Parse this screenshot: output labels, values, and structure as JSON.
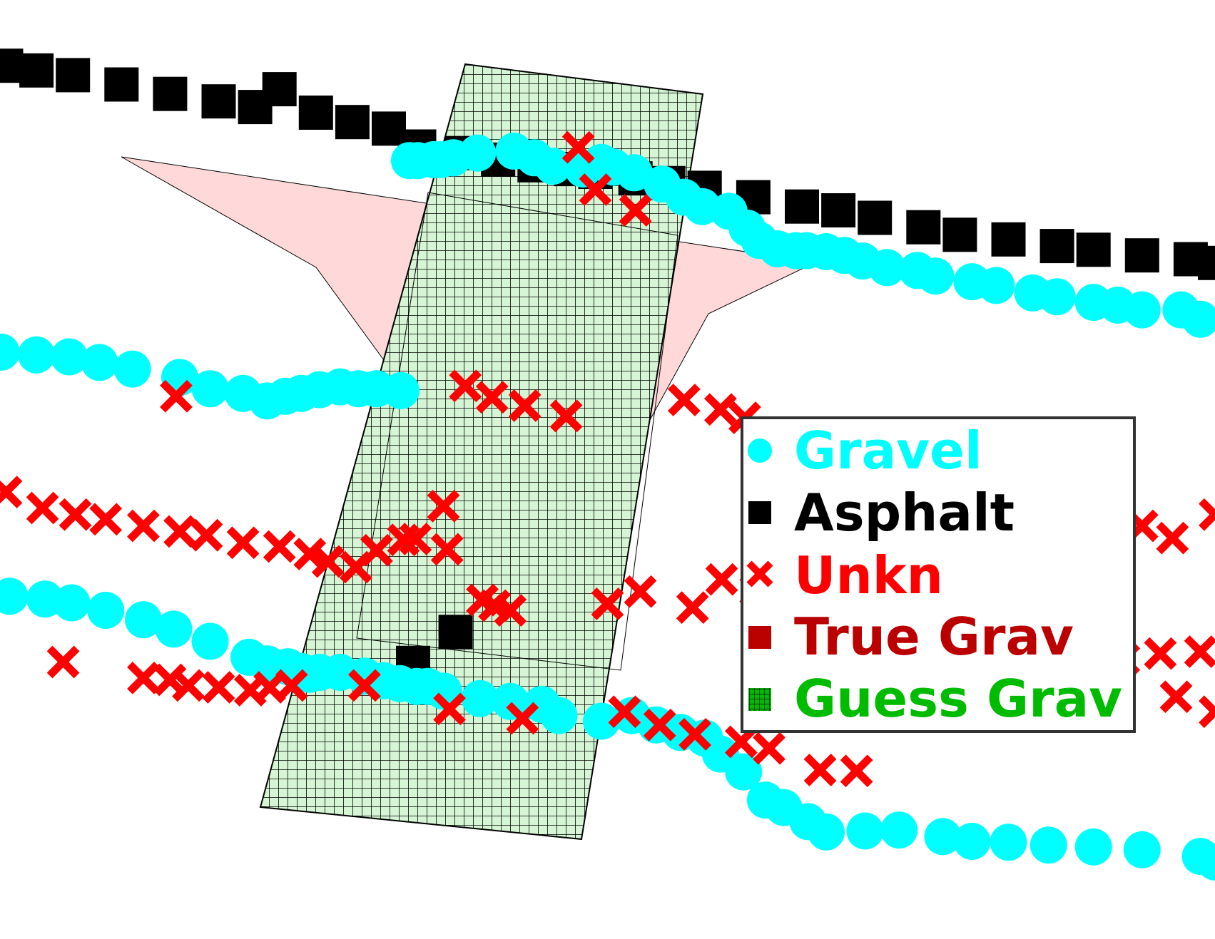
{
  "chart_data": {
    "type": "scatter",
    "title": "",
    "xlabel": "",
    "ylabel": "",
    "grid": false,
    "legend_position": "right",
    "xlim": [
      0,
      1000
    ],
    "ylim": [
      0,
      1000
    ],
    "series": [
      {
        "name": "Gravel",
        "marker": "circle",
        "color": "#00ffff",
        "points": [
          [
            1,
            625
          ],
          [
            30,
            622
          ],
          [
            57,
            620
          ],
          [
            82,
            614
          ],
          [
            109,
            607
          ],
          [
            148,
            598
          ],
          [
            173,
            586
          ],
          [
            200,
            581
          ],
          [
            220,
            573
          ],
          [
            235,
            578
          ],
          [
            248,
            581
          ],
          [
            263,
            585
          ],
          [
            280,
            588
          ],
          [
            295,
            586
          ],
          [
            310,
            586
          ],
          [
            330,
            584
          ],
          [
            337,
            829
          ],
          [
            344,
            829
          ],
          [
            357,
            830
          ],
          [
            363,
            830
          ],
          [
            373,
            832
          ],
          [
            393,
            837
          ],
          [
            423,
            839
          ],
          [
            440,
            832
          ],
          [
            455,
            823
          ],
          [
            480,
            820
          ],
          [
            495,
            827
          ],
          [
            505,
            822
          ],
          [
            522,
            816
          ],
          [
            545,
            804
          ],
          [
            563,
            790
          ],
          [
            578,
            780
          ],
          [
            600,
            775
          ],
          [
            615,
            757
          ],
          [
            625,
            744
          ],
          [
            640,
            735
          ],
          [
            655,
            733
          ],
          [
            664,
            733
          ],
          [
            680,
            732
          ],
          [
            695,
            728
          ],
          [
            710,
            722
          ],
          [
            730,
            715
          ],
          [
            755,
            712
          ],
          [
            770,
            706
          ],
          [
            800,
            700
          ],
          [
            820,
            696
          ],
          [
            850,
            688
          ],
          [
            870,
            684
          ],
          [
            900,
            678
          ],
          [
            920,
            675
          ],
          [
            940,
            670
          ],
          [
            972,
            670
          ],
          [
            988,
            660
          ],
          [
            8,
            365
          ],
          [
            37,
            362
          ],
          [
            59,
            358
          ],
          [
            87,
            350
          ],
          [
            118,
            340
          ],
          [
            143,
            330
          ],
          [
            173,
            317
          ],
          [
            205,
            300
          ],
          [
            220,
            293
          ],
          [
            237,
            290
          ],
          [
            248,
            285
          ],
          [
            255,
            282
          ],
          [
            263,
            284
          ],
          [
            280,
            284
          ],
          [
            300,
            280
          ],
          [
            316,
            275
          ],
          [
            329,
            272
          ],
          [
            343,
            269
          ],
          [
            352,
            269
          ],
          [
            365,
            264
          ],
          [
            395,
            256
          ],
          [
            420,
            253
          ],
          [
            446,
            250
          ],
          [
            460,
            238
          ],
          [
            495,
            232
          ],
          [
            520,
            238
          ],
          [
            540,
            228
          ],
          [
            560,
            220
          ],
          [
            580,
            214
          ],
          [
            593,
            197
          ],
          [
            612,
            178
          ],
          [
            630,
            148
          ],
          [
            645,
            140
          ],
          [
            665,
            125
          ],
          [
            680,
            114
          ],
          [
            712,
            115
          ],
          [
            740,
            116
          ],
          [
            776,
            109
          ],
          [
            800,
            104
          ],
          [
            830,
            103
          ],
          [
            863,
            100
          ],
          [
            900,
            98
          ],
          [
            940,
            95
          ],
          [
            988,
            88
          ],
          [
            1000,
            82
          ]
        ]
      },
      {
        "name": "Asphalt",
        "marker": "square",
        "color": "#000000",
        "points": [
          [
            5,
            930
          ],
          [
            30,
            925
          ],
          [
            60,
            920
          ],
          [
            100,
            910
          ],
          [
            140,
            900
          ],
          [
            180,
            892
          ],
          [
            210,
            886
          ],
          [
            230,
            905
          ],
          [
            260,
            880
          ],
          [
            290,
            870
          ],
          [
            320,
            863
          ],
          [
            345,
            844
          ],
          [
            380,
            837
          ],
          [
            410,
            830
          ],
          [
            440,
            824
          ],
          [
            470,
            820
          ],
          [
            490,
            817
          ],
          [
            523,
            810
          ],
          [
            550,
            805
          ],
          [
            580,
            800
          ],
          [
            620,
            790
          ],
          [
            660,
            780
          ],
          [
            690,
            776
          ],
          [
            720,
            768
          ],
          [
            760,
            758
          ],
          [
            790,
            750
          ],
          [
            830,
            745
          ],
          [
            870,
            738
          ],
          [
            900,
            734
          ],
          [
            940,
            728
          ],
          [
            980,
            724
          ],
          [
            1000,
            720
          ],
          [
            375,
            327
          ],
          [
            340,
            294
          ]
        ]
      },
      {
        "name": "Unkn",
        "marker": "x",
        "color": "#ff0000",
        "points": [
          [
            145,
            578
          ],
          [
            383,
            589
          ],
          [
            405,
            577
          ],
          [
            432,
            568
          ],
          [
            466,
            557
          ],
          [
            476,
            843
          ],
          [
            490,
            798
          ],
          [
            523,
            776
          ],
          [
            563,
            574
          ],
          [
            593,
            564
          ],
          [
            613,
            555
          ],
          [
            625,
            537
          ],
          [
            657,
            527
          ],
          [
            692,
            512
          ],
          [
            722,
            498
          ],
          [
            762,
            480
          ],
          [
            800,
            474
          ],
          [
            835,
            468
          ],
          [
            872,
            460
          ],
          [
            900,
            454
          ],
          [
            940,
            440
          ],
          [
            965,
            427
          ],
          [
            1000,
            452
          ],
          [
            5,
            476
          ],
          [
            35,
            459
          ],
          [
            62,
            452
          ],
          [
            87,
            447
          ],
          [
            118,
            440
          ],
          [
            148,
            434
          ],
          [
            170,
            430
          ],
          [
            200,
            422
          ],
          [
            230,
            418
          ],
          [
            255,
            410
          ],
          [
            270,
            402
          ],
          [
            293,
            396
          ],
          [
            310,
            414
          ],
          [
            332,
            425
          ],
          [
            342,
            426
          ],
          [
            365,
            461
          ],
          [
            368,
            415
          ],
          [
            397,
            361
          ],
          [
            407,
            355
          ],
          [
            420,
            350
          ],
          [
            500,
            357
          ],
          [
            527,
            370
          ],
          [
            570,
            353
          ],
          [
            594,
            383
          ],
          [
            622,
            371
          ],
          [
            660,
            330
          ],
          [
            695,
            325
          ],
          [
            732,
            314
          ],
          [
            765,
            310
          ],
          [
            800,
            306
          ],
          [
            830,
            301
          ],
          [
            860,
            300
          ],
          [
            890,
            300
          ],
          [
            925,
            298
          ],
          [
            955,
            304
          ],
          [
            988,
            306
          ],
          [
            52,
            295
          ],
          [
            118,
            278
          ],
          [
            140,
            276
          ],
          [
            155,
            270
          ],
          [
            180,
            268
          ],
          [
            206,
            265
          ],
          [
            222,
            268
          ],
          [
            240,
            270
          ],
          [
            300,
            270
          ],
          [
            370,
            245
          ],
          [
            430,
            235
          ],
          [
            514,
            242
          ],
          [
            543,
            228
          ],
          [
            572,
            218
          ],
          [
            610,
            210
          ],
          [
            633,
            203
          ],
          [
            675,
            180
          ],
          [
            705,
            179
          ],
          [
            968,
            258
          ],
          [
            1000,
            242
          ]
        ]
      }
    ],
    "regions": [
      {
        "name": "True Grav",
        "color": "#ffcccc",
        "description": ""
      },
      {
        "name": "Guess Grav",
        "color": "#d5f5d5",
        "description": ""
      }
    ]
  },
  "legend": {
    "items": [
      {
        "label": "Gravel",
        "color": "#00ffff",
        "marker": "circle"
      },
      {
        "label": "Asphalt",
        "color": "#000000",
        "marker": "square"
      },
      {
        "label": "Unkn",
        "color": "#ff0000",
        "marker": "x"
      },
      {
        "label": "True Grav",
        "color": "#bb0000",
        "marker": "filled-square"
      },
      {
        "label": "Guess Grav",
        "color": "#00bb00",
        "marker": "hatched-square"
      }
    ]
  }
}
